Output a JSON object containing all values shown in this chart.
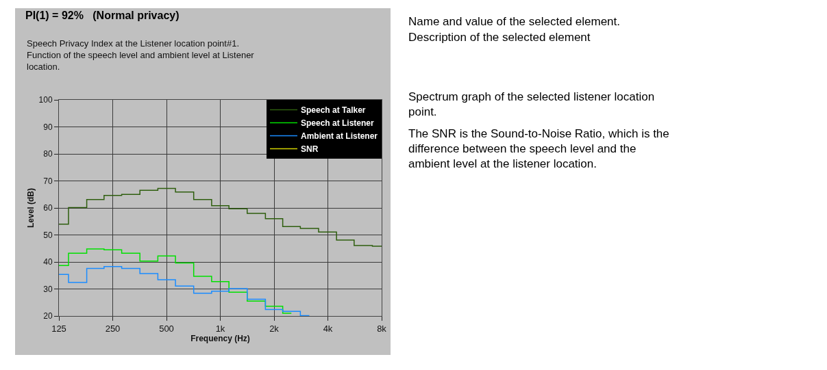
{
  "chart_data": {
    "type": "step",
    "title": "PI(1) = 92%   (Normal privacy)",
    "subtitle": "Speech Privacy Index at the Listener location point#1. Function of the speech level and ambient level at Listener location.",
    "xlabel": "Frequency (Hz)",
    "ylabel": "Level (dB)",
    "x": [
      125,
      160,
      200,
      250,
      315,
      400,
      500,
      630,
      800,
      1000,
      1250,
      1600,
      2000,
      2500,
      3150,
      4000,
      5000,
      6300,
      8000
    ],
    "series": [
      {
        "name": "Speech at Talker",
        "color": "#2e5e0e",
        "values": [
          54.0,
          60.1,
          63.1,
          64.6,
          65.0,
          66.5,
          67.2,
          65.9,
          63.1,
          60.8,
          59.7,
          58.0,
          56.0,
          53.1,
          52.4,
          51.1,
          48.1,
          46.1,
          45.8
        ]
      },
      {
        "name": "Speech at Listener",
        "color": "#00e000",
        "values": [
          38.7,
          43.2,
          44.8,
          44.5,
          43.2,
          40.3,
          42.2,
          39.6,
          34.7,
          32.7,
          28.8,
          25.5,
          23.6,
          21.0,
          null,
          null,
          null,
          null,
          null
        ]
      },
      {
        "name": "Ambient at Listener",
        "color": "#1a8cff",
        "values": [
          35.4,
          32.4,
          37.6,
          38.3,
          37.6,
          35.7,
          33.4,
          31.1,
          28.4,
          29.2,
          30.1,
          26.2,
          22.4,
          21.7,
          20.1,
          null,
          null,
          null,
          null
        ]
      },
      {
        "name": "SNR",
        "color": "#d4d400",
        "values": [
          null,
          null,
          null,
          null,
          null,
          null,
          null,
          null,
          null,
          null,
          null,
          null,
          null,
          null,
          null,
          null,
          null,
          null,
          null
        ]
      }
    ],
    "log": "x",
    "xlim": [
      125,
      8000
    ],
    "xticks": [
      125,
      250,
      500,
      {
        "value": 1000,
        "label": "1k"
      },
      {
        "value": 2000,
        "label": "2k"
      },
      {
        "value": 4000,
        "label": "4k"
      },
      {
        "value": 8000,
        "label": "8k"
      }
    ],
    "ylim": [
      20,
      100
    ],
    "yticks": [
      20,
      30,
      40,
      50,
      60,
      70,
      80,
      90,
      100
    ],
    "grid": true,
    "legend": "top right",
    "annotations": [
      "Name and value of the selected element.",
      "Description of the selected element",
      "Spectrum graph of the selected listener location point.",
      "The SNR is the Sound-to-Noise Ratio, which is the difference between the speech level and the ambient level at the listener location."
    ]
  }
}
